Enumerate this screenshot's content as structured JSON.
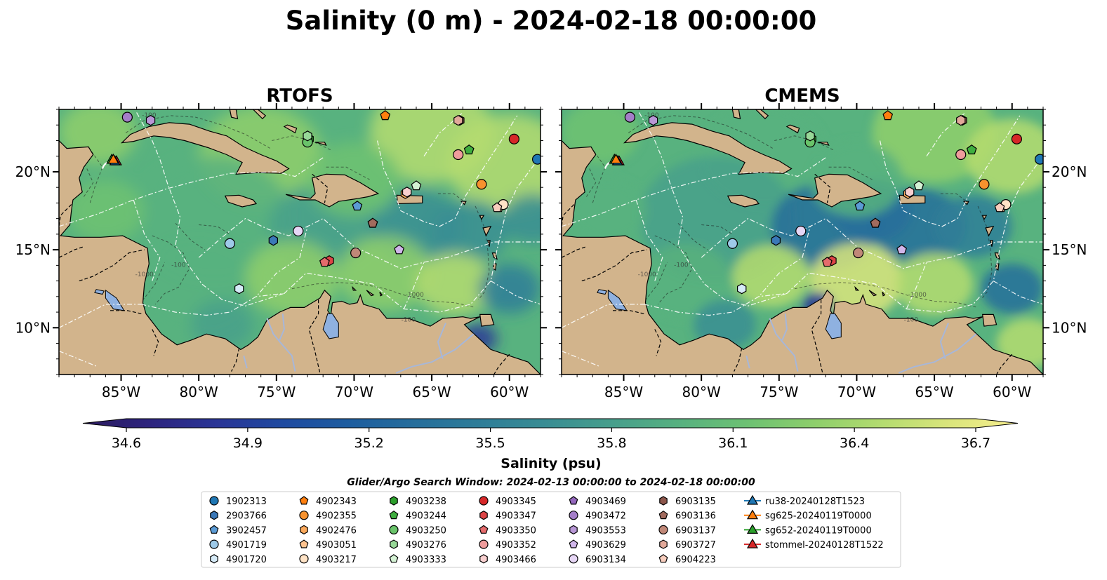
{
  "chart_data": {
    "type": "heatmap",
    "title": "Salinity (0 m) - 2024-02-18 00:00:00",
    "colors": {
      "land": "#d2b48c",
      "lake": "#8fb1e0",
      "river": "#a7b7d9",
      "deep_ocean": "#2a1a5e",
      "eez_lines": "#ffffff",
      "borders": "#000000",
      "colormap": [
        "#2b1b5e",
        "#2d247e",
        "#2a3596",
        "#1f4aa0",
        "#1d5d9f",
        "#266e9b",
        "#2f7e98",
        "#3a8e93",
        "#48a08b",
        "#58b27f",
        "#6ec272",
        "#8fcf6b",
        "#b5dc70",
        "#dbe57c",
        "#f7ee8e"
      ]
    },
    "panels": [
      {
        "title": "RTOFS",
        "xlim": [
          -89,
          -58
        ],
        "ylim": [
          7,
          24
        ],
        "xticks": [
          -85,
          -80,
          -75,
          -70,
          -65,
          -60
        ],
        "xtick_labels": [
          "85°W",
          "80°W",
          "75°W",
          "70°W",
          "65°W",
          "60°W"
        ],
        "yticks": [
          10,
          15,
          20
        ],
        "ytick_labels": [
          "10°N",
          "15°N",
          "20°N"
        ],
        "yaxis_side": "left",
        "contour_labels": [
          {
            "text": "-100",
            "lon": -83.2,
            "lat": 23.5
          },
          {
            "text": "-100",
            "lon": -81.3,
            "lat": 13.9
          },
          {
            "text": "-1000",
            "lon": -83.5,
            "lat": 13.3
          },
          {
            "text": "-1000",
            "lon": -66.1,
            "lat": 12.0
          },
          {
            "text": "-100",
            "lon": -66.5,
            "lat": 10.4
          }
        ]
      },
      {
        "title": "CMEMS",
        "xlim": [
          -89,
          -58
        ],
        "ylim": [
          7,
          24
        ],
        "xticks": [
          -85,
          -80,
          -75,
          -70,
          -65,
          -60
        ],
        "xtick_labels": [
          "85°W",
          "80°W",
          "75°W",
          "70°W",
          "65°W",
          "60°W"
        ],
        "yticks": [
          10,
          15,
          20
        ],
        "ytick_labels": [
          "10°N",
          "15°N",
          "20°N"
        ],
        "yaxis_side": "right",
        "contour_labels": [
          {
            "text": "-100",
            "lon": -83.2,
            "lat": 23.5
          },
          {
            "text": "-100",
            "lon": -81.3,
            "lat": 13.9
          },
          {
            "text": "-1000",
            "lon": -83.5,
            "lat": 13.3
          },
          {
            "text": "-1000",
            "lon": -66.1,
            "lat": 12.0
          },
          {
            "text": "-100",
            "lon": -66.5,
            "lat": 10.4
          }
        ]
      }
    ],
    "colorbar": {
      "label": "Salinity (psu)",
      "range": [
        34.5,
        36.8
      ],
      "ticks": [
        34.6,
        34.9,
        35.2,
        35.5,
        35.8,
        36.1,
        36.4,
        36.7
      ],
      "tick_labels": [
        "34.6",
        "34.9",
        "35.2",
        "35.5",
        "35.8",
        "36.1",
        "36.4",
        "36.7"
      ],
      "extend": "both"
    },
    "search_window": "Glider/Argo Search Window: 2024-02-13 00:00:00 to 2024-02-18 00:00:00",
    "legend": {
      "placement": "bottom-center",
      "columns": [
        [
          {
            "name": "1902313",
            "marker": "circle",
            "color": "#1f77b4"
          },
          {
            "name": "2903766",
            "marker": "hexagon",
            "color": "#3a78b8"
          },
          {
            "name": "3902457",
            "marker": "pentagon",
            "color": "#5b9bd5"
          },
          {
            "name": "4901719",
            "marker": "circle",
            "color": "#9ecae9"
          },
          {
            "name": "4901720",
            "marker": "hexagon",
            "color": "#d6ebf8"
          }
        ],
        [
          {
            "name": "4902343",
            "marker": "pentagon",
            "color": "#ff7f0e"
          },
          {
            "name": "4902355",
            "marker": "circle",
            "color": "#f7922e"
          },
          {
            "name": "4902476",
            "marker": "hexagon",
            "color": "#fba95b"
          },
          {
            "name": "4903051",
            "marker": "pentagon",
            "color": "#fdc38f"
          },
          {
            "name": "4903217",
            "marker": "circle",
            "color": "#fee3c6"
          }
        ],
        [
          {
            "name": "4903238",
            "marker": "hexagon",
            "color": "#2ca02c"
          },
          {
            "name": "4903244",
            "marker": "pentagon",
            "color": "#3fae3f"
          },
          {
            "name": "4903250",
            "marker": "circle",
            "color": "#69c36a"
          },
          {
            "name": "4903276",
            "marker": "hexagon",
            "color": "#98d898"
          },
          {
            "name": "4903333",
            "marker": "pentagon",
            "color": "#d4f2d4"
          }
        ],
        [
          {
            "name": "4903345",
            "marker": "circle",
            "color": "#d62728"
          },
          {
            "name": "4903347",
            "marker": "hexagon",
            "color": "#dd4446"
          },
          {
            "name": "4903350",
            "marker": "pentagon",
            "color": "#e56b6c"
          },
          {
            "name": "4903352",
            "marker": "circle",
            "color": "#ef9c9c"
          },
          {
            "name": "4903466",
            "marker": "hexagon",
            "color": "#f8cfcf"
          }
        ],
        [
          {
            "name": "4903469",
            "marker": "pentagon",
            "color": "#9467bd"
          },
          {
            "name": "4903472",
            "marker": "circle",
            "color": "#a47ec8"
          },
          {
            "name": "4903553",
            "marker": "hexagon",
            "color": "#b897d6"
          },
          {
            "name": "4903629",
            "marker": "pentagon",
            "color": "#d0b6ea"
          },
          {
            "name": "6903134",
            "marker": "circle",
            "color": "#e6d6f5"
          }
        ],
        [
          {
            "name": "6903135",
            "marker": "hexagon",
            "color": "#8c564b"
          },
          {
            "name": "6903136",
            "marker": "pentagon",
            "color": "#a26b5e"
          },
          {
            "name": "6903137",
            "marker": "circle",
            "color": "#c08878"
          },
          {
            "name": "6903727",
            "marker": "hexagon",
            "color": "#e2a99a"
          },
          {
            "name": "6904223",
            "marker": "pentagon",
            "color": "#f7cdbd"
          }
        ],
        [
          {
            "name": "ru38-20240128T1523",
            "marker": "triangle-line",
            "color": "#1f77b4"
          },
          {
            "name": "sg625-20240119T0000",
            "marker": "triangle-line",
            "color": "#ff7f0e"
          },
          {
            "name": "sg652-20240119T0000",
            "marker": "triangle-line",
            "color": "#2ca02c"
          },
          {
            "name": "stommel-20240128T1522",
            "marker": "triangle-line",
            "color": "#d62728"
          }
        ]
      ]
    },
    "platforms": [
      {
        "name": "1902313",
        "lon": -58.2,
        "lat": 20.8
      },
      {
        "name": "2903766",
        "lon": -75.2,
        "lat": 15.6
      },
      {
        "name": "3902457",
        "lon": -69.8,
        "lat": 17.8
      },
      {
        "name": "4901719",
        "lon": -78.0,
        "lat": 15.4
      },
      {
        "name": "4901720",
        "lon": -77.4,
        "lat": 12.5
      },
      {
        "name": "4902343",
        "lon": -68.0,
        "lat": 23.6
      },
      {
        "name": "4902355",
        "lon": -61.8,
        "lat": 19.2
      },
      {
        "name": "4902476",
        "lon": -66.7,
        "lat": 18.6
      },
      {
        "name": "4903051",
        "lon": -60.7,
        "lat": 17.7
      },
      {
        "name": "4903217",
        "lon": -60.4,
        "lat": 17.9
      },
      {
        "name": "4903238",
        "lon": -72.9,
        "lat": 22.1
      },
      {
        "name": "4903244",
        "lon": -62.6,
        "lat": 21.4
      },
      {
        "name": "4903250",
        "lon": -73.0,
        "lat": 21.9
      },
      {
        "name": "4903276",
        "lon": -73.0,
        "lat": 22.3
      },
      {
        "name": "4903333",
        "lon": -66.0,
        "lat": 19.1
      },
      {
        "name": "4903345",
        "lon": -59.7,
        "lat": 22.1
      },
      {
        "name": "4903347",
        "lon": -71.6,
        "lat": 14.3
      },
      {
        "name": "4903350",
        "lon": -71.9,
        "lat": 14.2
      },
      {
        "name": "4903352",
        "lon": -63.3,
        "lat": 21.1
      },
      {
        "name": "4903466",
        "lon": -66.6,
        "lat": 18.7
      },
      {
        "name": "4903469",
        "lon": -68.8,
        "lat": 16.7
      },
      {
        "name": "4903472",
        "lon": -84.6,
        "lat": 23.5
      },
      {
        "name": "4903553",
        "lon": -83.1,
        "lat": 23.3
      },
      {
        "name": "4903629",
        "lon": -67.1,
        "lat": 15.0
      },
      {
        "name": "6903134",
        "lon": -73.6,
        "lat": 16.2
      },
      {
        "name": "6903135",
        "lon": -63.2,
        "lat": 23.3
      },
      {
        "name": "6903136",
        "lon": -68.8,
        "lat": 16.7
      },
      {
        "name": "6903137",
        "lon": -69.9,
        "lat": 14.8
      },
      {
        "name": "6903727",
        "lon": -63.3,
        "lat": 23.3
      },
      {
        "name": "6904223",
        "lon": -60.8,
        "lat": 17.7
      }
    ],
    "gliders": [
      {
        "name": "sg652-20240119T0000",
        "lon": -85.6,
        "lat": 20.8
      },
      {
        "name": "stommel-20240128T1522",
        "lon": -85.3,
        "lat": 20.7
      },
      {
        "name": "ru38-20240128T1523",
        "lon": -85.4,
        "lat": 20.7
      },
      {
        "name": "sg625-20240119T0000",
        "lon": -85.5,
        "lat": 20.8
      }
    ]
  }
}
